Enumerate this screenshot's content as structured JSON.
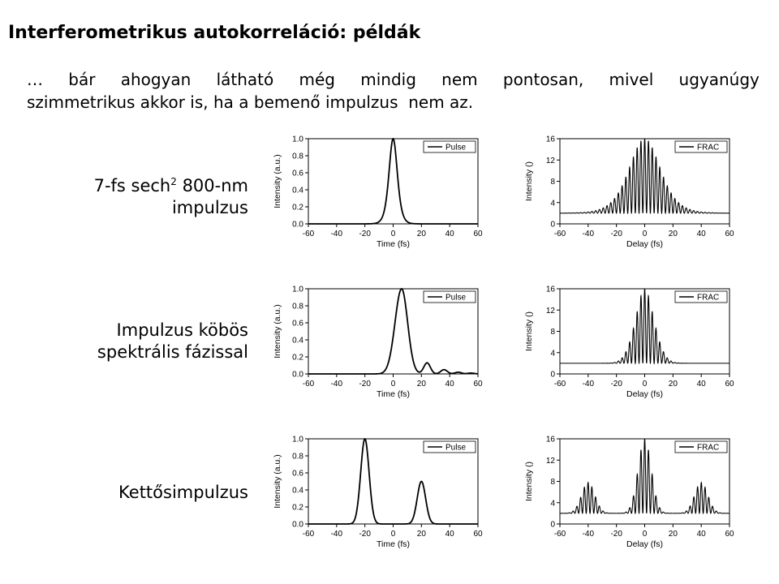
{
  "title": "Interferometrikus autokorreláció: példák",
  "text": {
    "line1_words": [
      "…",
      "bár",
      "ahogyan",
      "látható",
      "még",
      "mindig",
      "nem",
      "pontosan,",
      "mivel",
      "ugyanúgy"
    ],
    "line2": "szimmetrikus akkor is, ha a bemenő impulzus  nem az."
  },
  "rows": [
    {
      "label_pre": "7-fs sech",
      "label_sup": "2",
      "label_post": " 800-nm",
      "label_line2": "impulzus"
    },
    {
      "label_line1": "Impulzus köbös",
      "label_line2": "spektrális fázissal"
    },
    {
      "label_line1": "Kettősimpulzus"
    }
  ],
  "chart_data": [
    {
      "type": "line",
      "row": 0,
      "kind": "pulse",
      "xlabel": "Time (fs)",
      "ylabel": "Intensity (a.u.)",
      "xlim": [
        -60,
        60
      ],
      "ylim": [
        0,
        1.0
      ],
      "xticks": [
        -60,
        -40,
        -20,
        0,
        20,
        40,
        60
      ],
      "yticks": [
        0.0,
        0.2,
        0.4,
        0.6,
        0.8,
        1.0
      ],
      "legend": "Pulse",
      "legend_position": "top-right",
      "series": [
        {
          "name": "Pulse",
          "shape": "sech2",
          "center_fs": 0,
          "fwhm_fs": 7,
          "peak": 1.0,
          "baseline": 0.0
        }
      ]
    },
    {
      "type": "line",
      "row": 0,
      "kind": "frac",
      "xlabel": "Delay (fs)",
      "ylabel": "Intensity ()",
      "xlim": [
        -60,
        60
      ],
      "ylim": [
        0,
        16
      ],
      "xticks": [
        -60,
        -40,
        -20,
        0,
        20,
        40,
        60
      ],
      "yticks": [
        0,
        4,
        8,
        12,
        16
      ],
      "legend": "FRAC",
      "legend_position": "top-right",
      "series": [
        {
          "name": "FRAC",
          "peak": 16,
          "baseline": 2,
          "fringe_period_fs": 2.67
        }
      ]
    },
    {
      "type": "line",
      "row": 1,
      "kind": "pulse",
      "xlabel": "Time (fs)",
      "ylabel": "Intensity (a.u.)",
      "xlim": [
        -60,
        60
      ],
      "ylim": [
        0,
        1.0
      ],
      "xticks": [
        -60,
        -40,
        -20,
        0,
        20,
        40,
        60
      ],
      "yticks": [
        0.0,
        0.2,
        0.4,
        0.6,
        0.8,
        1.0
      ],
      "legend": "Pulse",
      "legend_position": "top-right",
      "series": [
        {
          "name": "Pulse",
          "shape": "cubic-phase",
          "main_peak_fs": 6,
          "peak": 1.0,
          "side_peaks": [
            [
              24,
              0.13
            ],
            [
              36,
              0.05
            ],
            [
              46,
              0.02
            ],
            [
              55,
              0.01
            ]
          ]
        }
      ]
    },
    {
      "type": "line",
      "row": 1,
      "kind": "frac",
      "xlabel": "Delay (fs)",
      "ylabel": "Intensity ()",
      "xlim": [
        -60,
        60
      ],
      "ylim": [
        0,
        16
      ],
      "xticks": [
        -60,
        -40,
        -20,
        0,
        20,
        40,
        60
      ],
      "yticks": [
        0,
        4,
        8,
        12,
        16
      ],
      "legend": "FRAC",
      "legend_position": "top-right",
      "series": [
        {
          "name": "FRAC",
          "peak": 16,
          "baseline": 2,
          "fringe_period_fs": 2.67
        }
      ]
    },
    {
      "type": "line",
      "row": 2,
      "kind": "pulse",
      "xlabel": "Time (fs)",
      "ylabel": "Intensity (a.u.)",
      "xlim": [
        -60,
        60
      ],
      "ylim": [
        0,
        1.0
      ],
      "xticks": [
        -60,
        -40,
        -20,
        0,
        20,
        40,
        60
      ],
      "yticks": [
        0.0,
        0.2,
        0.4,
        0.6,
        0.8,
        1.0
      ],
      "legend": "Pulse",
      "legend_position": "top-right",
      "series": [
        {
          "name": "Pulse",
          "shape": "double",
          "peaks": [
            [
              -20,
              1.0
            ],
            [
              20,
              0.5
            ]
          ]
        }
      ]
    },
    {
      "type": "line",
      "row": 2,
      "kind": "frac",
      "xlabel": "Delay (fs)",
      "ylabel": "Intensity ()",
      "xlim": [
        -60,
        60
      ],
      "ylim": [
        0,
        16
      ],
      "xticks": [
        -60,
        -40,
        -20,
        0,
        20,
        40,
        60
      ],
      "yticks": [
        0,
        4,
        8,
        12,
        16
      ],
      "legend": "FRAC",
      "legend_position": "top-right",
      "series": [
        {
          "name": "FRAC",
          "peak": 16,
          "side_peaks": [
            [
              -40,
              7.8
            ],
            [
              40,
              7.8
            ]
          ],
          "baseline": 2,
          "fringe_period_fs": 2.67
        }
      ]
    }
  ]
}
